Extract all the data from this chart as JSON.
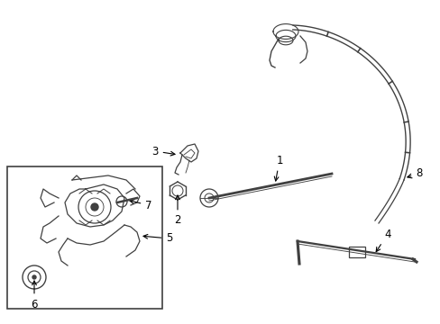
{
  "bg_color": "#ffffff",
  "line_color": "#404040",
  "label_color": "#000000",
  "fig_width": 4.89,
  "fig_height": 3.6,
  "dpi": 100
}
